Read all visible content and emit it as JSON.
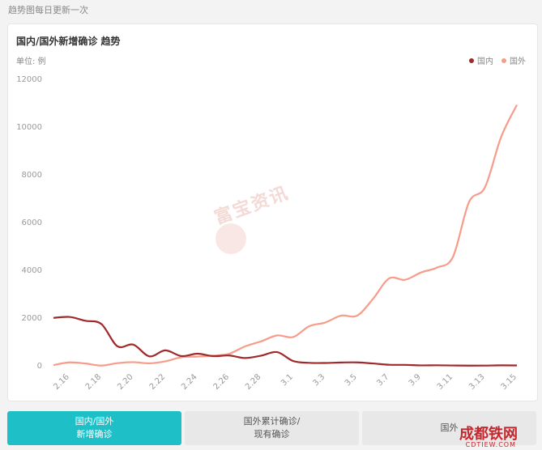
{
  "header": {
    "note": "趋势图每日更新一次"
  },
  "card": {
    "title": "国内/国外新增确诊 趋势",
    "unit": "单位: 例"
  },
  "watermark": {
    "text": "富宝资讯"
  },
  "corner_logo": {
    "text": "成都铁网",
    "sub": "CDTIEW.COM"
  },
  "tabs": [
    {
      "label": "国内/国外\n新增确诊",
      "active": true
    },
    {
      "label": "国外累计确诊/\n现有确诊",
      "active": false
    },
    {
      "label": "国外",
      "active": false
    }
  ],
  "colors": {
    "domestic": "#9e2a2b",
    "foreign": "#f79b8a",
    "accent": "#1fbfc8"
  },
  "chart_data": {
    "type": "line",
    "x": [
      "2.15",
      "2.16",
      "2.17",
      "2.18",
      "2.19",
      "2.20",
      "2.21",
      "2.22",
      "2.23",
      "2.24",
      "2.25",
      "2.26",
      "2.27",
      "2.28",
      "2.29",
      "3.1",
      "3.2",
      "3.3",
      "3.4",
      "3.5",
      "3.6",
      "3.7",
      "3.8",
      "3.9",
      "3.10",
      "3.11",
      "3.12",
      "3.13",
      "3.14",
      "3.15"
    ],
    "xticks": [
      "2.16",
      "2.18",
      "2.20",
      "2.22",
      "2.24",
      "2.26",
      "2.28",
      "3.1",
      "3.3",
      "3.5",
      "3.7",
      "3.9",
      "3.11",
      "3.13",
      "3.15"
    ],
    "ylim": [
      0,
      12000
    ],
    "yticks": [
      0,
      2000,
      4000,
      6000,
      8000,
      10000,
      12000
    ],
    "series": [
      {
        "name": "国内",
        "color": "#9e2a2b",
        "values": [
          2009,
          2048,
          1886,
          1749,
          820,
          889,
          397,
          648,
          409,
          508,
          406,
          433,
          327,
          427,
          573,
          202,
          125,
          119,
          139,
          143,
          99,
          44,
          40,
          19,
          24,
          15,
          8,
          11,
          20,
          16
        ]
      },
      {
        "name": "国外",
        "color": "#f79b8a",
        "values": [
          30,
          143,
          97,
          10,
          112,
          154,
          105,
          189,
          360,
          386,
          426,
          507,
          818,
          1026,
          1275,
          1204,
          1658,
          1812,
          2103,
          2102,
          2808,
          3660,
          3604,
          3909,
          4115,
          4565,
          6851,
          7474,
          9562,
          10930
        ]
      }
    ]
  }
}
